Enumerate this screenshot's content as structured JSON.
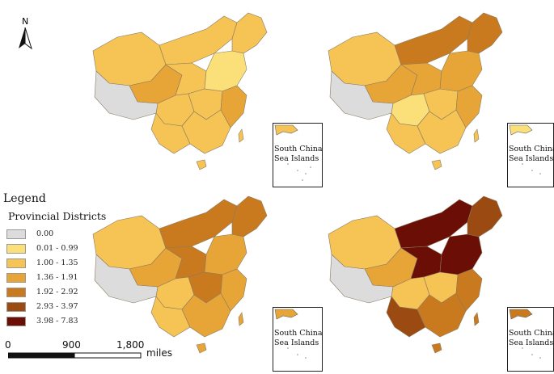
{
  "north_arrow": {
    "label": "N"
  },
  "legend": {
    "title": "Legend",
    "subtitle": "Provincial Districts",
    "classes": [
      {
        "label": "0.00",
        "color": "#dcdcdc"
      },
      {
        "label": "0.01 - 0.99",
        "color": "#fbe07a"
      },
      {
        "label": "1.00 - 1.35",
        "color": "#f6c355"
      },
      {
        "label": "1.36 - 1.91",
        "color": "#e8a537"
      },
      {
        "label": "1.92 - 2.92",
        "color": "#c97a1f"
      },
      {
        "label": "2.93 - 3.97",
        "color": "#9b4a12"
      },
      {
        "label": "3.98 - 7.83",
        "color": "#6b0f06"
      }
    ]
  },
  "scale_bar": {
    "ticks": [
      "0",
      "900",
      "1,800"
    ],
    "unit": "miles"
  },
  "inset_label": [
    "South China",
    "Sea Islands"
  ],
  "maps": [
    {
      "region_classes": [
        2,
        2,
        3,
        2,
        2,
        1,
        2,
        2,
        0,
        3,
        2,
        2
      ]
    },
    {
      "region_classes": [
        2,
        4,
        3,
        3,
        4,
        3,
        1,
        2,
        0,
        3,
        2,
        2
      ]
    },
    {
      "region_classes": [
        2,
        4,
        3,
        4,
        4,
        3,
        2,
        4,
        0,
        3,
        2,
        3
      ]
    },
    {
      "region_classes": [
        2,
        6,
        3,
        6,
        5,
        6,
        2,
        2,
        0,
        4,
        5,
        4
      ]
    }
  ]
}
